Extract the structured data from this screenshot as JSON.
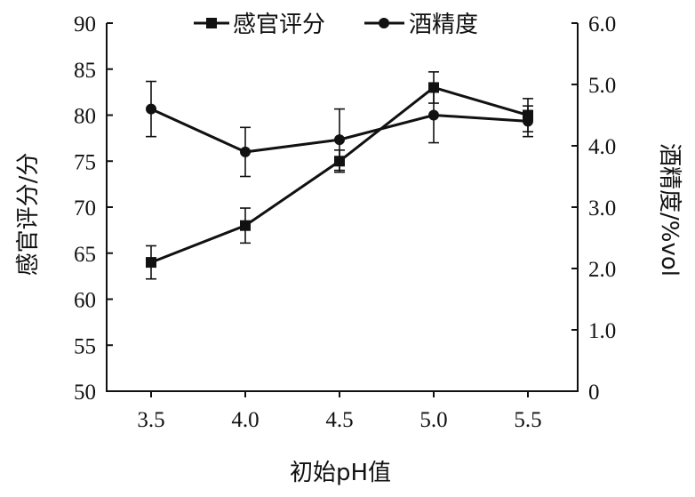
{
  "chart_data": {
    "type": "line",
    "x": [
      "3.5",
      "4.0",
      "4.5",
      "5.0",
      "5.5"
    ],
    "xlabel": "初始pH值",
    "ylabel_left": "感官评分/分",
    "ylabel_right": "酒精度/%vol",
    "yleft_range": [
      50,
      90
    ],
    "yleft_ticks": [
      "50",
      "55",
      "60",
      "65",
      "70",
      "75",
      "80",
      "85",
      "90"
    ],
    "yright_range": [
      0,
      6
    ],
    "yright_ticks": [
      "0",
      "1.0",
      "2.0",
      "3.0",
      "4.0",
      "5.0",
      "6.0"
    ],
    "grid": false,
    "legend_position": "top",
    "series": [
      {
        "name": "感官评分",
        "axis": "left",
        "marker": "square",
        "values": [
          64,
          68,
          75,
          83,
          80
        ],
        "errors": [
          1.8,
          1.9,
          1.2,
          1.7,
          1.8
        ]
      },
      {
        "name": "酒精度",
        "axis": "right",
        "marker": "circle",
        "values": [
          4.6,
          3.9,
          4.1,
          4.5,
          4.4
        ],
        "errors": [
          0.45,
          0.4,
          0.5,
          0.45,
          0.25
        ]
      }
    ]
  }
}
